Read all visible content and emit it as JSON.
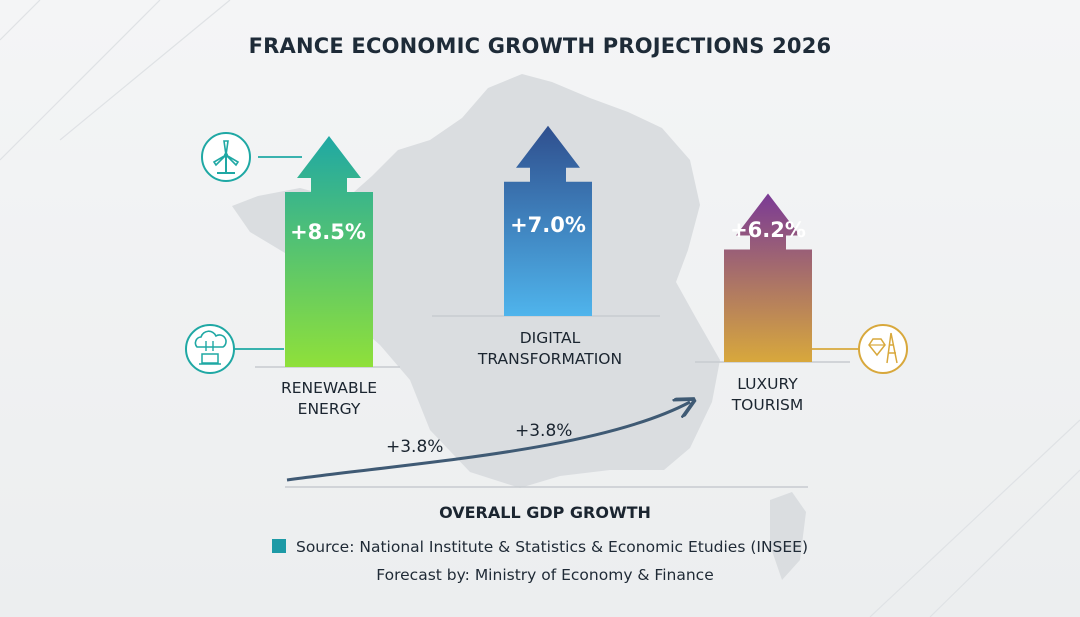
{
  "title": "FRANCE ECONOMIC GROWTH PROJECTIONS 2026",
  "chart_data": {
    "type": "bar",
    "title": "FRANCE ECONOMIC GROWTH PROJECTIONS 2026",
    "categories": [
      {
        "line1": "RENEWABLE",
        "line2": "ENERGY"
      },
      {
        "line1": "DIGITAL",
        "line2": "TRANSFORMATION"
      },
      {
        "line1": "LUXURY",
        "line2": "TOURISM"
      }
    ],
    "values": [
      8.5,
      7.0,
      6.2
    ],
    "value_labels": [
      "+8.5%",
      "+7.0%",
      "+6.2%"
    ],
    "colors": {
      "renewable": [
        "#1fa8a4",
        "#8fe03a"
      ],
      "digital": [
        "#2f4f8e",
        "#4fb4ec"
      ],
      "tourism": [
        "#7a3a95",
        "#d8a83c"
      ]
    },
    "icons": [
      "wind-turbine-icon",
      "cloud-computing-icon",
      "diamond-eiffel-tower-icon"
    ],
    "gdp": {
      "label": "OVERALL GDP GROWTH",
      "value_labels": [
        "+3.8%",
        "+3.8%"
      ],
      "line_color": "#3f5a74"
    }
  },
  "footer": {
    "source": "Source: National Institute & Statistics & Economic Etudies (INSEE)",
    "forecast": "Forecast by: Ministry of Economy & Finance",
    "legend_color": "#1d9aa6"
  }
}
